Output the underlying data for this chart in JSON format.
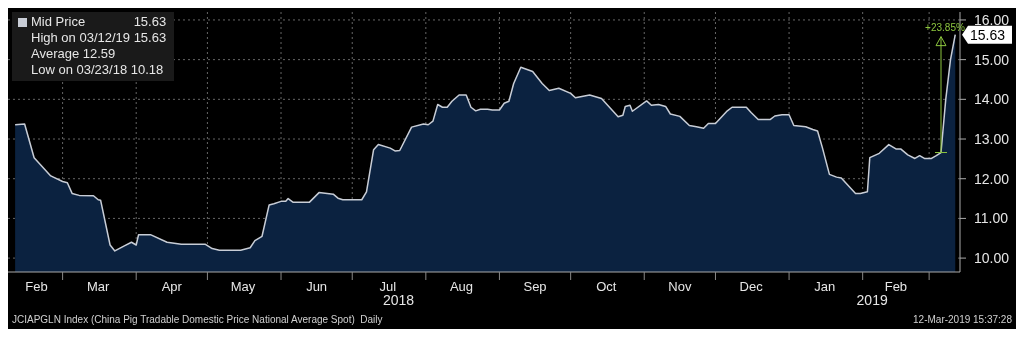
{
  "chart_data": {
    "type": "area",
    "legend": "top left",
    "grid": true,
    "xlim": [
      "2018-02-06",
      "2019-03-14"
    ],
    "xticks": [
      {
        "value": "2018-02-18",
        "label": "Feb"
      },
      {
        "value": "2018-03-01",
        "label": null
      },
      {
        "value": "2018-03-16",
        "label": "Mar"
      },
      {
        "value": "2018-04-01",
        "label": null
      },
      {
        "value": "2018-04-16",
        "label": "Apr"
      },
      {
        "value": "2018-05-01",
        "label": null
      },
      {
        "value": "2018-05-16",
        "label": "May"
      },
      {
        "value": "2018-06-01",
        "label": null
      },
      {
        "value": "2018-06-16",
        "label": "Jun"
      },
      {
        "value": "2018-07-01",
        "label": null
      },
      {
        "value": "2018-07-16",
        "label": "Jul"
      },
      {
        "value": "2018-08-01",
        "label": null
      },
      {
        "value": "2018-08-16",
        "label": "Aug"
      },
      {
        "value": "2018-09-01",
        "label": null
      },
      {
        "value": "2018-09-16",
        "label": "Sep"
      },
      {
        "value": "2018-10-01",
        "label": null
      },
      {
        "value": "2018-10-16",
        "label": "Oct"
      },
      {
        "value": "2018-11-01",
        "label": null
      },
      {
        "value": "2018-11-16",
        "label": "Nov"
      },
      {
        "value": "2018-12-01",
        "label": null
      },
      {
        "value": "2018-12-16",
        "label": "Dec"
      },
      {
        "value": "2019-01-01",
        "label": null
      },
      {
        "value": "2019-01-16",
        "label": "Jan"
      },
      {
        "value": "2019-02-01",
        "label": null
      },
      {
        "value": "2019-02-15",
        "label": "Feb"
      },
      {
        "value": "2019-03-01",
        "label": null
      }
    ],
    "ylim": [
      9.65,
      16.2
    ],
    "yticks": [
      {
        "value": 10,
        "label": "10.00"
      },
      {
        "value": 11,
        "label": "11.00"
      },
      {
        "value": 12,
        "label": "12.00"
      },
      {
        "value": 13,
        "label": "13.00"
      },
      {
        "value": 14,
        "label": "14.00"
      },
      {
        "value": 15,
        "label": "15.00"
      },
      {
        "value": 16,
        "label": "16.00"
      }
    ],
    "x": [
      "2018-02-09",
      "2018-02-13",
      "2018-02-17",
      "2018-02-24",
      "2018-03-01",
      "2018-03-03",
      "2018-03-05",
      "2018-03-08",
      "2018-03-14",
      "2018-03-16",
      "2018-03-17",
      "2018-03-21",
      "2018-03-23",
      "2018-03-27",
      "2018-03-30",
      "2018-04-01",
      "2018-04-02",
      "2018-04-07",
      "2018-04-14",
      "2018-04-20",
      "2018-04-30",
      "2018-05-03",
      "2018-05-06",
      "2018-05-15",
      "2018-05-19",
      "2018-05-21",
      "2018-05-24",
      "2018-05-27",
      "2018-05-29",
      "2018-06-01",
      "2018-06-03",
      "2018-06-04",
      "2018-06-06",
      "2018-06-13",
      "2018-06-17",
      "2018-06-23",
      "2018-06-25",
      "2018-06-27",
      "2018-07-05",
      "2018-07-07",
      "2018-07-10",
      "2018-07-12",
      "2018-07-17",
      "2018-07-19",
      "2018-07-21",
      "2018-07-26",
      "2018-07-31",
      "2018-08-02",
      "2018-08-04",
      "2018-08-06",
      "2018-08-08",
      "2018-08-10",
      "2018-08-12",
      "2018-08-15",
      "2018-08-18",
      "2018-08-20",
      "2018-08-22",
      "2018-08-24",
      "2018-08-27",
      "2018-08-29",
      "2018-09-01",
      "2018-09-03",
      "2018-09-05",
      "2018-09-07",
      "2018-09-10",
      "2018-09-15",
      "2018-09-19",
      "2018-09-22",
      "2018-09-26",
      "2018-10-01",
      "2018-10-03",
      "2018-10-09",
      "2018-10-14",
      "2018-10-21",
      "2018-10-23",
      "2018-10-24",
      "2018-10-26",
      "2018-10-27",
      "2018-11-02",
      "2018-11-04",
      "2018-11-07",
      "2018-11-10",
      "2018-11-12",
      "2018-11-16",
      "2018-11-20",
      "2018-11-23",
      "2018-11-26",
      "2018-11-28",
      "2018-12-01",
      "2018-12-06",
      "2018-12-08",
      "2018-12-14",
      "2018-12-16",
      "2018-12-19",
      "2018-12-24",
      "2018-12-26",
      "2018-12-29",
      "2019-01-01",
      "2019-01-03",
      "2019-01-08",
      "2019-01-11",
      "2019-01-13",
      "2019-01-15",
      "2019-01-18",
      "2019-01-21",
      "2019-01-23",
      "2019-01-29",
      "2019-01-31",
      "2019-02-03",
      "2019-02-04",
      "2019-02-08",
      "2019-02-12",
      "2019-02-15",
      "2019-02-17",
      "2019-02-20",
      "2019-02-23",
      "2019-02-25",
      "2019-02-27",
      "2019-03-02",
      "2019-03-04",
      "2019-03-06",
      "2019-03-08",
      "2019-03-10",
      "2019-03-12"
    ],
    "series": [
      {
        "name": "Mid Price",
        "color": "#c8cdd6",
        "values": [
          13.36,
          13.38,
          12.53,
          12.07,
          11.93,
          11.9,
          11.63,
          11.58,
          11.57,
          11.47,
          11.46,
          10.33,
          10.18,
          10.31,
          10.4,
          10.33,
          10.59,
          10.59,
          10.4,
          10.35,
          10.35,
          10.24,
          10.2,
          10.2,
          10.26,
          10.44,
          10.55,
          11.34,
          11.37,
          11.43,
          11.43,
          11.5,
          11.41,
          11.41,
          11.65,
          11.61,
          11.51,
          11.47,
          11.47,
          11.67,
          12.73,
          12.86,
          12.77,
          12.7,
          12.71,
          13.3,
          13.38,
          13.36,
          13.45,
          13.87,
          13.8,
          13.8,
          13.95,
          14.11,
          14.11,
          13.8,
          13.71,
          13.75,
          13.75,
          13.73,
          13.73,
          13.9,
          13.95,
          14.4,
          14.81,
          14.7,
          14.4,
          14.22,
          14.28,
          14.15,
          14.04,
          14.11,
          14.02,
          13.56,
          13.6,
          13.82,
          13.85,
          13.7,
          13.96,
          13.85,
          13.87,
          13.82,
          13.63,
          13.57,
          13.34,
          13.31,
          13.27,
          13.39,
          13.39,
          13.71,
          13.8,
          13.8,
          13.67,
          13.49,
          13.49,
          13.58,
          13.61,
          13.61,
          13.34,
          13.31,
          13.24,
          13.2,
          12.79,
          12.11,
          12.04,
          12.02,
          11.63,
          11.63,
          11.67,
          12.53,
          12.64,
          12.86,
          12.75,
          12.75,
          12.6,
          12.51,
          12.58,
          12.51,
          12.51,
          12.58,
          12.66,
          14.0,
          15.0,
          15.63
        ],
        "value_labels": [
          null,
          null,
          null,
          null,
          null,
          null,
          null,
          null,
          null,
          null,
          null,
          null,
          null,
          null,
          null,
          null,
          null,
          null,
          null,
          null,
          null,
          null,
          null,
          null,
          null,
          null,
          null,
          null,
          null,
          null,
          null,
          null,
          null,
          null,
          null,
          null,
          null,
          null,
          null,
          null,
          null,
          null,
          null,
          null,
          null,
          null,
          null,
          null,
          null,
          null,
          null,
          null,
          null,
          null,
          null,
          null,
          null,
          null,
          null,
          null,
          null,
          null,
          null,
          null,
          null,
          null,
          null,
          null,
          null,
          null,
          null,
          null,
          null,
          null,
          null,
          null,
          null,
          null,
          null,
          null,
          null,
          null,
          null,
          null,
          null,
          null,
          null,
          null,
          null,
          null,
          null,
          null,
          null,
          null,
          null,
          null,
          null,
          null,
          null,
          null,
          null,
          null,
          null,
          null,
          null,
          null,
          null,
          null,
          null,
          null,
          null,
          null,
          null,
          null,
          null,
          null,
          null,
          null,
          null,
          null,
          null,
          null,
          null,
          "15.63"
        ]
      }
    ],
    "annotations": [
      "High on 03/12/19 15.63",
      "Average 12.59",
      "Low on 03/23/18 10.18",
      {
        "text": "+23.85%",
        "x": "2019-03-06",
        "y": 12.66
      },
      "2018",
      "2019",
      "JCIAPGLN Index (China Pig Tradable Domestic Price National Average Spot)  Daily",
      "12-Mar-2019 15:37:28"
    ]
  }
}
